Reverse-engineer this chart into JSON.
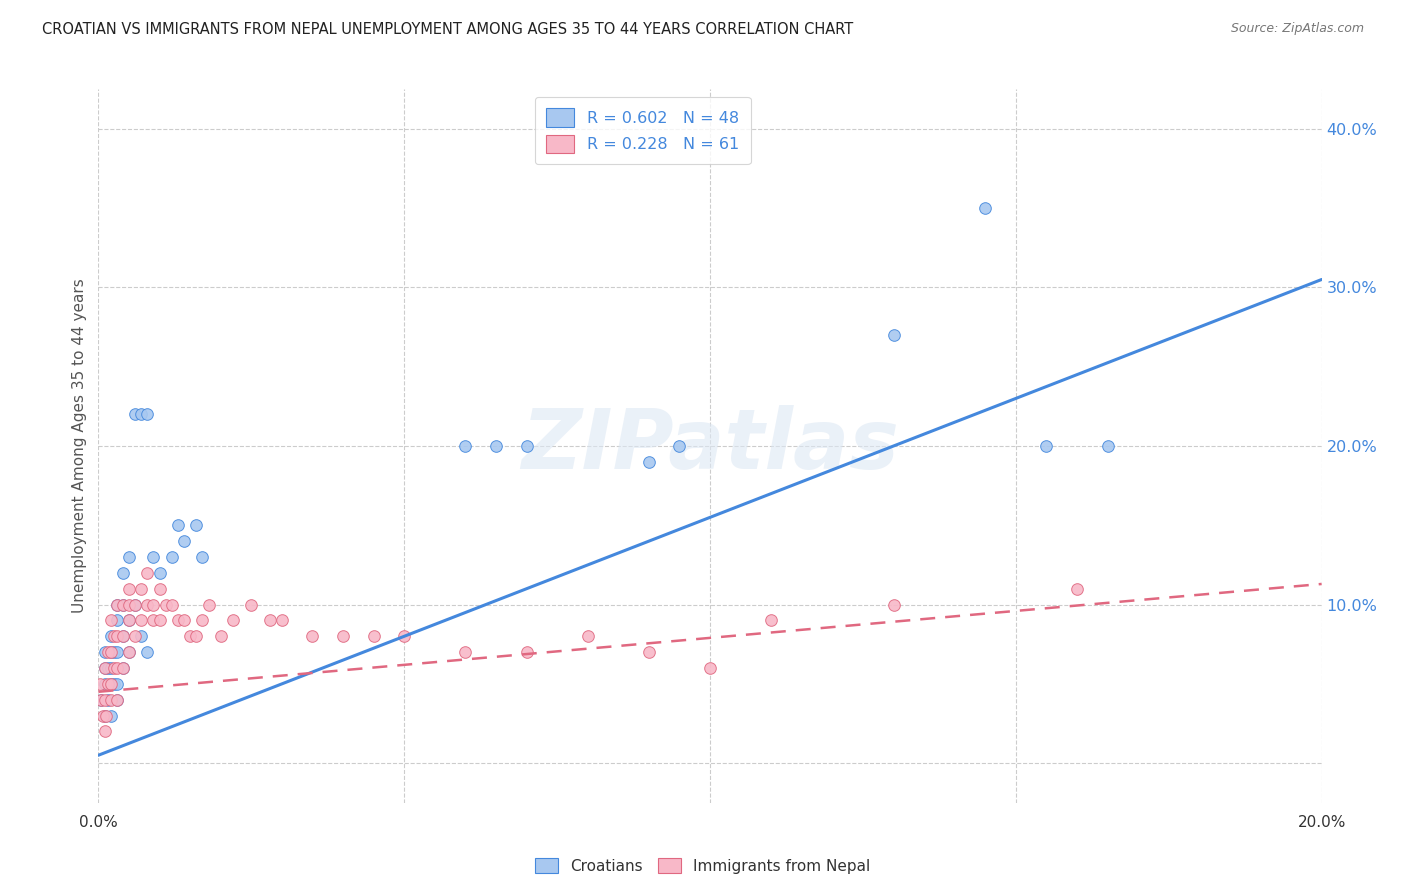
{
  "title": "CROATIAN VS IMMIGRANTS FROM NEPAL UNEMPLOYMENT AMONG AGES 35 TO 44 YEARS CORRELATION CHART",
  "source": "Source: ZipAtlas.com",
  "ylabel": "Unemployment Among Ages 35 to 44 years",
  "background_color": "#ffffff",
  "watermark": "ZIPatlas",
  "croatian_color": "#a8c8f0",
  "nepal_color": "#f8b8c8",
  "croatian_line_color": "#4488dd",
  "nepal_line_color": "#e06880",
  "legend_R1": "R = 0.602",
  "legend_N1": "N = 48",
  "legend_R2": "R = 0.228",
  "legend_N2": "N = 61",
  "xlim": [
    0.0,
    0.2
  ],
  "ylim": [
    -0.025,
    0.425
  ],
  "yticks": [
    0.0,
    0.1,
    0.2,
    0.3,
    0.4
  ],
  "ytick_labels": [
    "",
    "10.0%",
    "20.0%",
    "30.0%",
    "40.0%"
  ],
  "xtick_positions": [
    0.0,
    0.05,
    0.1,
    0.15,
    0.2
  ],
  "croatian_scatter_x": [
    0.0005,
    0.001,
    0.001,
    0.001,
    0.001,
    0.0015,
    0.0015,
    0.002,
    0.002,
    0.002,
    0.002,
    0.002,
    0.0025,
    0.0025,
    0.003,
    0.003,
    0.003,
    0.003,
    0.003,
    0.004,
    0.004,
    0.004,
    0.004,
    0.005,
    0.005,
    0.005,
    0.006,
    0.006,
    0.007,
    0.007,
    0.008,
    0.008,
    0.009,
    0.01,
    0.012,
    0.013,
    0.014,
    0.016,
    0.017,
    0.06,
    0.065,
    0.07,
    0.09,
    0.095,
    0.13,
    0.145,
    0.155,
    0.165
  ],
  "croatian_scatter_y": [
    0.04,
    0.03,
    0.05,
    0.06,
    0.07,
    0.04,
    0.06,
    0.03,
    0.05,
    0.06,
    0.07,
    0.08,
    0.05,
    0.07,
    0.04,
    0.05,
    0.07,
    0.09,
    0.1,
    0.06,
    0.08,
    0.1,
    0.12,
    0.07,
    0.09,
    0.13,
    0.1,
    0.22,
    0.08,
    0.22,
    0.07,
    0.22,
    0.13,
    0.12,
    0.13,
    0.15,
    0.14,
    0.15,
    0.13,
    0.2,
    0.2,
    0.2,
    0.19,
    0.2,
    0.27,
    0.35,
    0.2,
    0.2
  ],
  "nepal_scatter_x": [
    0.0003,
    0.0005,
    0.0008,
    0.001,
    0.001,
    0.001,
    0.0012,
    0.0015,
    0.0015,
    0.002,
    0.002,
    0.002,
    0.002,
    0.0025,
    0.0025,
    0.003,
    0.003,
    0.003,
    0.003,
    0.004,
    0.004,
    0.004,
    0.005,
    0.005,
    0.005,
    0.005,
    0.006,
    0.006,
    0.007,
    0.007,
    0.008,
    0.008,
    0.009,
    0.009,
    0.01,
    0.01,
    0.011,
    0.012,
    0.013,
    0.014,
    0.015,
    0.016,
    0.017,
    0.018,
    0.02,
    0.022,
    0.025,
    0.028,
    0.03,
    0.035,
    0.04,
    0.045,
    0.05,
    0.06,
    0.07,
    0.08,
    0.09,
    0.1,
    0.11,
    0.13,
    0.16
  ],
  "nepal_scatter_y": [
    0.05,
    0.04,
    0.03,
    0.02,
    0.04,
    0.06,
    0.03,
    0.05,
    0.07,
    0.04,
    0.05,
    0.07,
    0.09,
    0.06,
    0.08,
    0.04,
    0.06,
    0.08,
    0.1,
    0.06,
    0.08,
    0.1,
    0.07,
    0.09,
    0.1,
    0.11,
    0.08,
    0.1,
    0.09,
    0.11,
    0.1,
    0.12,
    0.09,
    0.1,
    0.09,
    0.11,
    0.1,
    0.1,
    0.09,
    0.09,
    0.08,
    0.08,
    0.09,
    0.1,
    0.08,
    0.09,
    0.1,
    0.09,
    0.09,
    0.08,
    0.08,
    0.08,
    0.08,
    0.07,
    0.07,
    0.08,
    0.07,
    0.06,
    0.09,
    0.1,
    0.11
  ],
  "croatian_trend_x": [
    0.0,
    0.2
  ],
  "croatian_trend_y": [
    0.005,
    0.305
  ],
  "nepal_trend_x": [
    0.0,
    0.2
  ],
  "nepal_trend_y": [
    0.045,
    0.113
  ]
}
